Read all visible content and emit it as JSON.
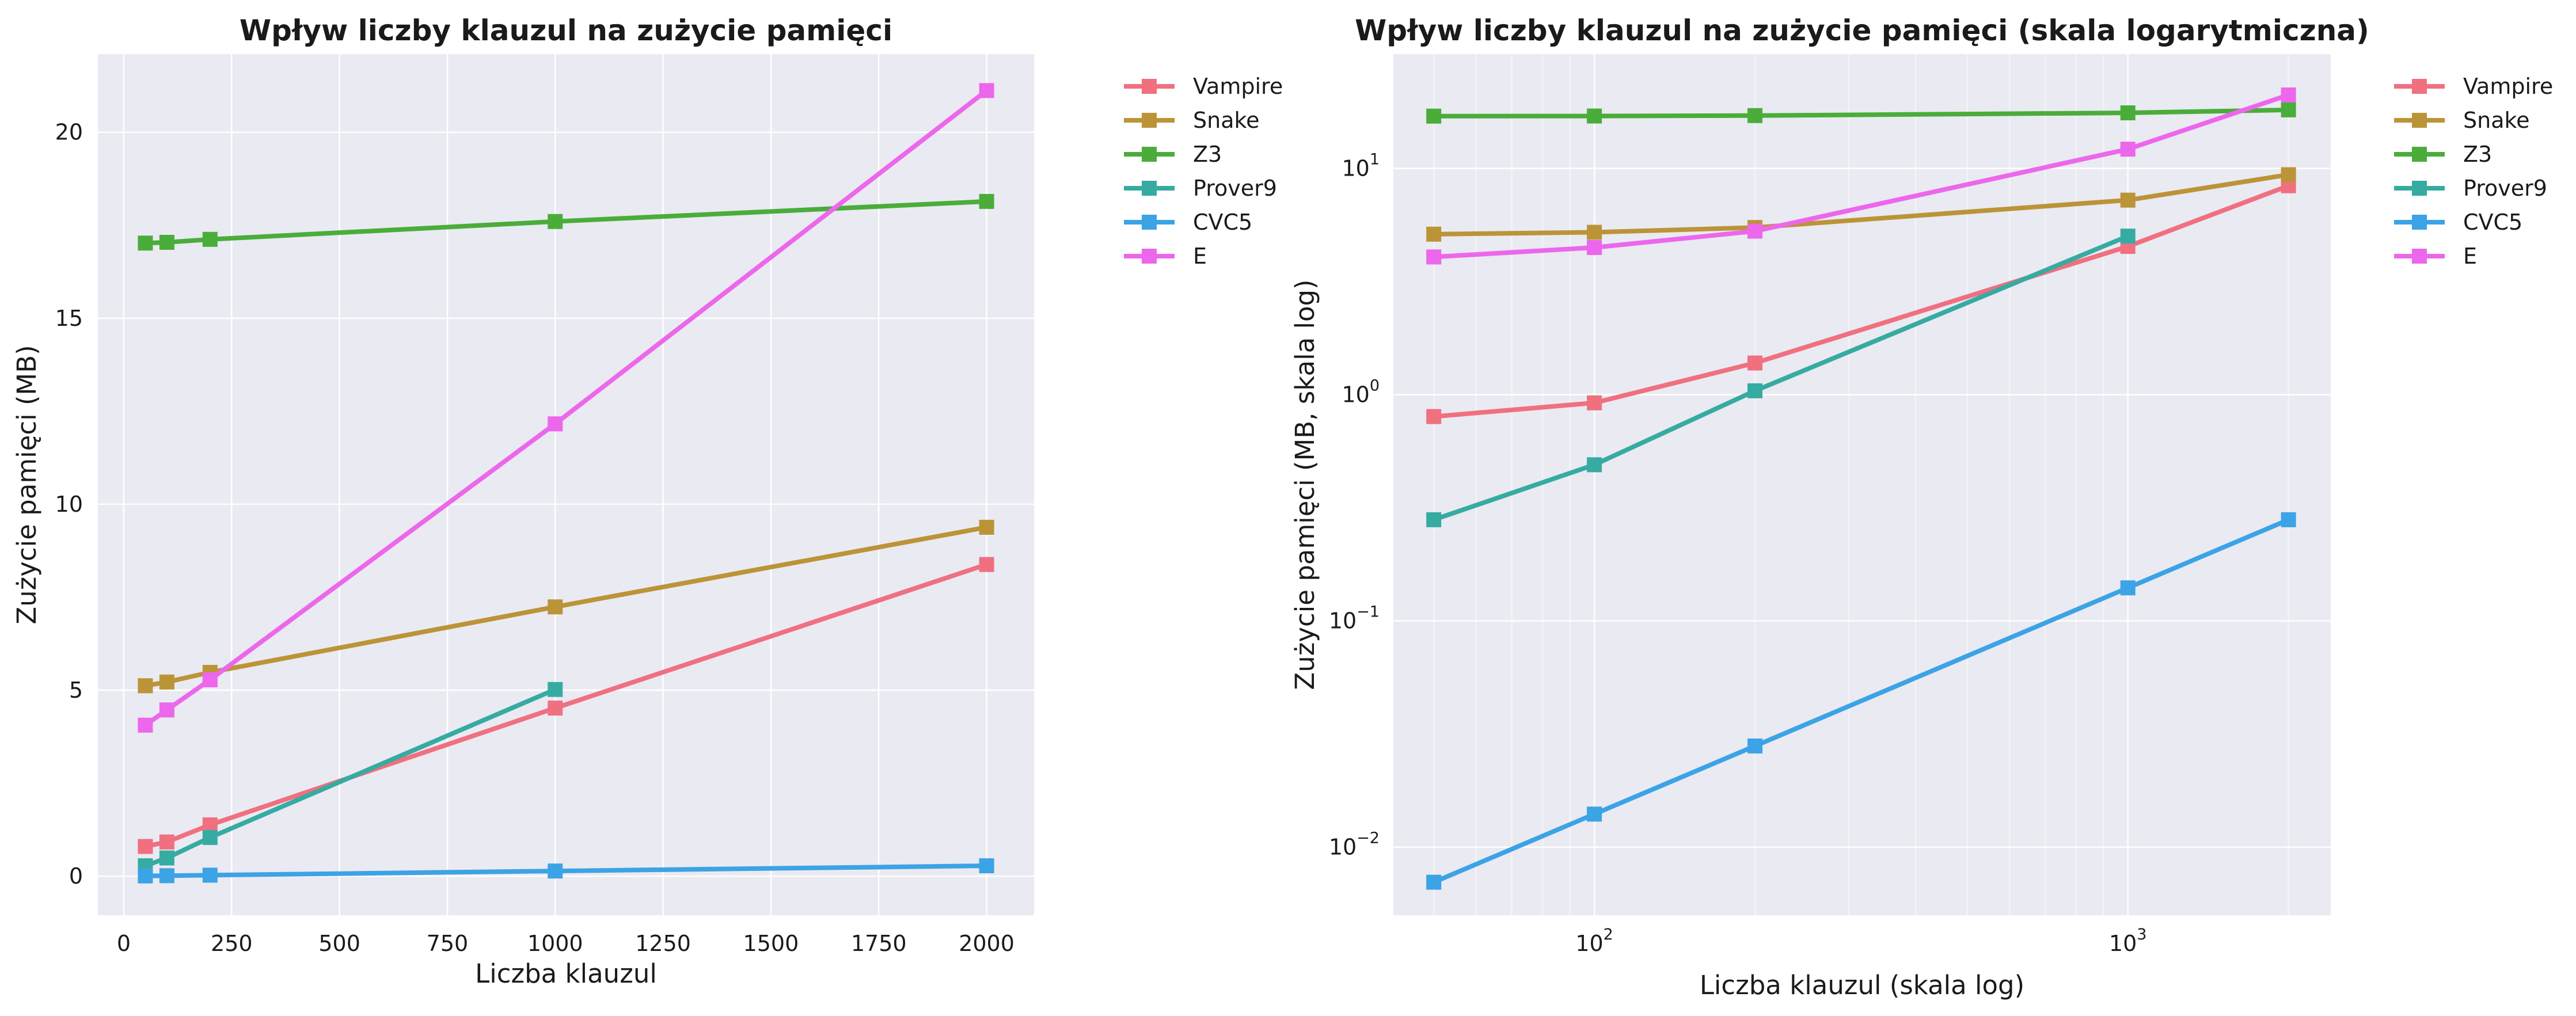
{
  "chart_data": [
    {
      "type": "line",
      "title": "Wpływ liczby klauzul na zużycie pamięci",
      "xlabel": "Liczba klauzul",
      "ylabel": "Zużycie pamięci (MB)",
      "xscale": "linear",
      "yscale": "linear",
      "xlim": [
        -60,
        2110
      ],
      "ylim": [
        -1.05,
        22.1
      ],
      "xticks": [
        0,
        250,
        500,
        750,
        1000,
        1250,
        1500,
        1750,
        2000
      ],
      "xtick_labels": [
        "0",
        "250",
        "500",
        "750",
        "1000",
        "1250",
        "1500",
        "1750",
        "2000"
      ],
      "yticks": [
        0,
        5,
        10,
        15,
        20
      ],
      "ytick_labels": [
        "0",
        "5",
        "10",
        "15",
        "20"
      ],
      "grid": true,
      "legend_position": "outside-right",
      "x": [
        50,
        100,
        200,
        1000,
        2000
      ],
      "series": [
        {
          "name": "Vampire",
          "color": "#f0707f",
          "values": [
            0.8,
            0.92,
            1.38,
            4.52,
            8.38
          ]
        },
        {
          "name": "Snake",
          "color": "#bc9438",
          "values": [
            5.12,
            5.22,
            5.48,
            7.24,
            9.38
          ]
        },
        {
          "name": "Z3",
          "color": "#4aad3a",
          "values": [
            17.02,
            17.04,
            17.12,
            17.6,
            18.14
          ]
        },
        {
          "name": "Prover9",
          "color": "#36aba2",
          "values": [
            0.28,
            0.49,
            1.04,
            5.02,
            null
          ]
        },
        {
          "name": "CVC5",
          "color": "#3ba3e6",
          "values": [
            0.007,
            0.014,
            0.028,
            0.14,
            0.28
          ]
        },
        {
          "name": "E",
          "color": "#ec67ec",
          "values": [
            4.06,
            4.47,
            5.28,
            12.16,
            21.12
          ]
        }
      ]
    },
    {
      "type": "line",
      "title": "Wpływ liczby klauzul na zużycie pamięci (skala logarytmiczna)",
      "xlabel": "Liczba klauzul (skala log)",
      "ylabel": "Zużycie pamięci (MB, skala log)",
      "xscale": "log",
      "yscale": "log",
      "xlim": [
        42,
        2400
      ],
      "ylim": [
        0.005,
        32
      ],
      "xticks": [
        100,
        1000
      ],
      "xtick_labels": [
        {
          "base": "10",
          "exp": "2"
        },
        {
          "base": "10",
          "exp": "3"
        }
      ],
      "yticks": [
        0.01,
        0.1,
        1,
        10
      ],
      "ytick_labels": [
        {
          "base": "10",
          "exp": "−2"
        },
        {
          "base": "10",
          "exp": "−1"
        },
        {
          "base": "10",
          "exp": "0"
        },
        {
          "base": "10",
          "exp": "1"
        }
      ],
      "grid": true,
      "legend_position": "outside-right",
      "x": [
        50,
        100,
        200,
        1000,
        2000
      ],
      "series": [
        {
          "name": "Vampire",
          "color": "#f0707f",
          "values": [
            0.8,
            0.92,
            1.38,
            4.52,
            8.38
          ]
        },
        {
          "name": "Snake",
          "color": "#bc9438",
          "values": [
            5.12,
            5.22,
            5.48,
            7.24,
            9.38
          ]
        },
        {
          "name": "Z3",
          "color": "#4aad3a",
          "values": [
            17.02,
            17.04,
            17.12,
            17.6,
            18.14
          ]
        },
        {
          "name": "Prover9",
          "color": "#36aba2",
          "values": [
            0.28,
            0.49,
            1.04,
            5.02,
            null
          ]
        },
        {
          "name": "CVC5",
          "color": "#3ba3e6",
          "values": [
            0.007,
            0.014,
            0.028,
            0.14,
            0.28
          ]
        },
        {
          "name": "E",
          "color": "#ec67ec",
          "values": [
            4.06,
            4.47,
            5.28,
            12.16,
            21.12
          ]
        }
      ]
    }
  ],
  "style": {
    "plot_background": "#eaeaf2",
    "grid_color": "#ffffff",
    "text_color": "#1a1a1a"
  }
}
